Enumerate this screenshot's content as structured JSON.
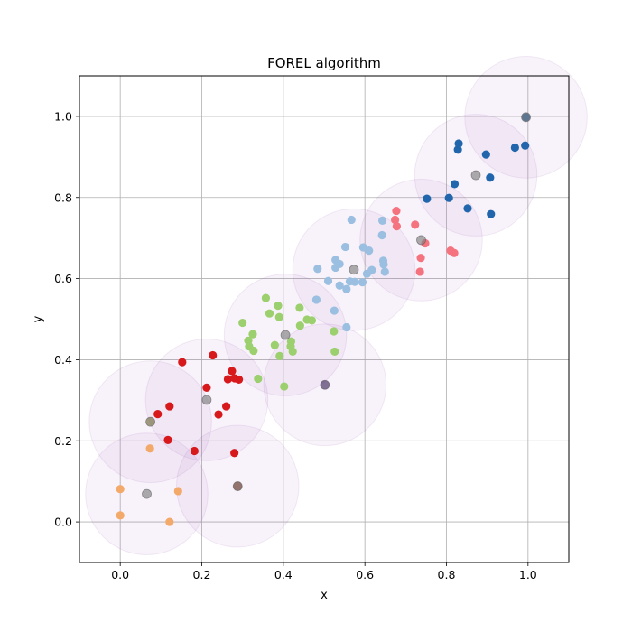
{
  "chart_data": {
    "type": "scatter",
    "title": "FOREL algorithm",
    "xlabel": "x",
    "ylabel": "y",
    "xlim": [
      -0.1,
      1.1
    ],
    "ylim": [
      -0.1,
      1.1
    ],
    "xticks": [
      "0.0",
      "0.2",
      "0.4",
      "0.6",
      "0.8",
      "1.0"
    ],
    "yticks": [
      "0.0",
      "0.2",
      "0.4",
      "0.6",
      "0.8",
      "1.0"
    ],
    "grid": true,
    "circle_radius": 0.15,
    "circle_color": "#9b59b6",
    "centers": [
      {
        "x": 0.995,
        "y": 0.998,
        "color": "#808080"
      },
      {
        "x": 0.872,
        "y": 0.855,
        "color": "#808080"
      },
      {
        "x": 0.738,
        "y": 0.695,
        "color": "#808080"
      },
      {
        "x": 0.573,
        "y": 0.622,
        "color": "#808080"
      },
      {
        "x": 0.405,
        "y": 0.461,
        "color": "#808080"
      },
      {
        "x": 0.502,
        "y": 0.338,
        "color": "#3f2a5e"
      },
      {
        "x": 0.212,
        "y": 0.301,
        "color": "#808080"
      },
      {
        "x": 0.074,
        "y": 0.247,
        "color": "#6f6a3c"
      },
      {
        "x": 0.065,
        "y": 0.069,
        "color": "#808080"
      },
      {
        "x": 0.288,
        "y": 0.088,
        "color": "#5a2e22"
      }
    ],
    "series": [
      {
        "color": "#2166ac",
        "points": [
          [
            0.995,
            0.998
          ],
          [
            0.83,
            0.933
          ],
          [
            0.897,
            0.906
          ],
          [
            0.968,
            0.923
          ],
          [
            0.993,
            0.928
          ],
          [
            0.828,
            0.918
          ],
          [
            0.82,
            0.833
          ],
          [
            0.907,
            0.849
          ],
          [
            0.752,
            0.797
          ],
          [
            0.806,
            0.799
          ],
          [
            0.852,
            0.773
          ],
          [
            0.909,
            0.759
          ]
        ]
      },
      {
        "color": "#f4737f",
        "points": [
          [
            0.677,
            0.767
          ],
          [
            0.674,
            0.745
          ],
          [
            0.723,
            0.733
          ],
          [
            0.678,
            0.729
          ],
          [
            0.748,
            0.687
          ],
          [
            0.81,
            0.669
          ],
          [
            0.819,
            0.663
          ],
          [
            0.737,
            0.651
          ],
          [
            0.735,
            0.617
          ]
        ]
      },
      {
        "color": "#9bbfe0",
        "points": [
          [
            0.567,
            0.745
          ],
          [
            0.643,
            0.743
          ],
          [
            0.552,
            0.678
          ],
          [
            0.596,
            0.677
          ],
          [
            0.61,
            0.669
          ],
          [
            0.642,
            0.707
          ],
          [
            0.528,
            0.646
          ],
          [
            0.538,
            0.636
          ],
          [
            0.645,
            0.644
          ],
          [
            0.646,
            0.635
          ],
          [
            0.484,
            0.624
          ],
          [
            0.528,
            0.627
          ],
          [
            0.617,
            0.621
          ],
          [
            0.649,
            0.617
          ],
          [
            0.605,
            0.612
          ],
          [
            0.51,
            0.594
          ],
          [
            0.563,
            0.593
          ],
          [
            0.575,
            0.592
          ],
          [
            0.594,
            0.591
          ],
          [
            0.538,
            0.583
          ],
          [
            0.555,
            0.574
          ],
          [
            0.481,
            0.548
          ],
          [
            0.525,
            0.521
          ],
          [
            0.555,
            0.48
          ]
        ]
      },
      {
        "color": "#9ccf6e",
        "points": [
          [
            0.357,
            0.552
          ],
          [
            0.387,
            0.533
          ],
          [
            0.44,
            0.528
          ],
          [
            0.366,
            0.514
          ],
          [
            0.39,
            0.505
          ],
          [
            0.3,
            0.491
          ],
          [
            0.458,
            0.499
          ],
          [
            0.47,
            0.497
          ],
          [
            0.441,
            0.484
          ],
          [
            0.325,
            0.463
          ],
          [
            0.524,
            0.47
          ],
          [
            0.314,
            0.447
          ],
          [
            0.419,
            0.445
          ],
          [
            0.316,
            0.433
          ],
          [
            0.379,
            0.436
          ],
          [
            0.418,
            0.433
          ],
          [
            0.327,
            0.422
          ],
          [
            0.423,
            0.42
          ],
          [
            0.391,
            0.409
          ],
          [
            0.526,
            0.42
          ],
          [
            0.338,
            0.353
          ],
          [
            0.402,
            0.334
          ]
        ]
      },
      {
        "color": "#d7191c",
        "points": [
          [
            0.227,
            0.411
          ],
          [
            0.152,
            0.394
          ],
          [
            0.274,
            0.372
          ],
          [
            0.212,
            0.331
          ],
          [
            0.264,
            0.352
          ],
          [
            0.281,
            0.354
          ],
          [
            0.291,
            0.351
          ],
          [
            0.26,
            0.285
          ],
          [
            0.121,
            0.285
          ],
          [
            0.092,
            0.266
          ],
          [
            0.241,
            0.265
          ],
          [
            0.117,
            0.202
          ],
          [
            0.182,
            0.175
          ],
          [
            0.28,
            0.17
          ]
        ]
      },
      {
        "color": "#f2a96a",
        "points": [
          [
            0.073,
            0.181
          ],
          [
            0.0,
            0.081
          ],
          [
            0.142,
            0.076
          ],
          [
            0.0,
            0.016
          ],
          [
            0.121,
            0.0
          ]
        ]
      }
    ]
  }
}
